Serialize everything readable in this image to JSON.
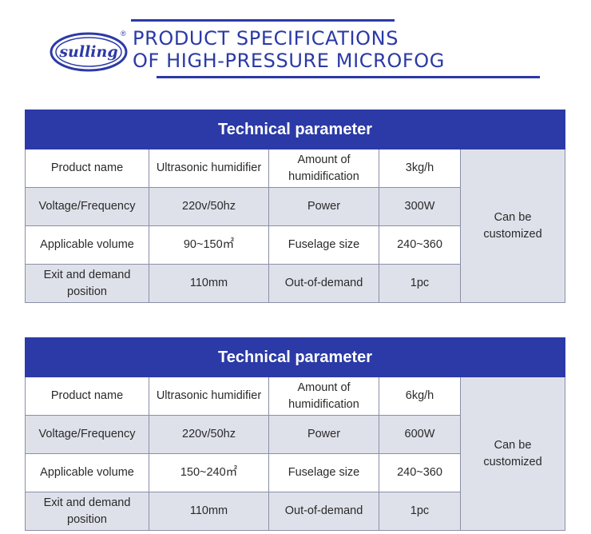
{
  "header": {
    "logo_text": "sulling",
    "logo_reg": "®",
    "title_line1": "PRODUCT SPECIFICATIONS",
    "title_line2": "OF HIGH-PRESSURE MICROFOG"
  },
  "colors": {
    "brand": "#2b3aa6",
    "shade": "#dfe1ea",
    "border": "#8a8fa6"
  },
  "tables": [
    {
      "title": "Technical parameter",
      "rows": [
        [
          "Product name",
          "Ultrasonic humidifier",
          "Amount of humidification",
          "3kg/h"
        ],
        [
          "Voltage/Frequency",
          "220v/50hz",
          "Power",
          "300W"
        ],
        [
          "Applicable volume",
          "90~150㎡",
          "Fuselage size",
          "240~360"
        ],
        [
          "Exit and demand position",
          "110mm",
          "Out-of-demand",
          "1pc"
        ]
      ],
      "extra": "Can be customized"
    },
    {
      "title": "Technical parameter",
      "rows": [
        [
          "Product name",
          "Ultrasonic humidifier",
          "Amount of humidification",
          "6kg/h"
        ],
        [
          "Voltage/Frequency",
          "220v/50hz",
          "Power",
          "600W"
        ],
        [
          "Applicable volume",
          "150~240㎡",
          "Fuselage size",
          "240~360"
        ],
        [
          "Exit and demand position",
          "110mm",
          "Out-of-demand",
          "1pc"
        ]
      ],
      "extra": "Can be customized"
    }
  ]
}
